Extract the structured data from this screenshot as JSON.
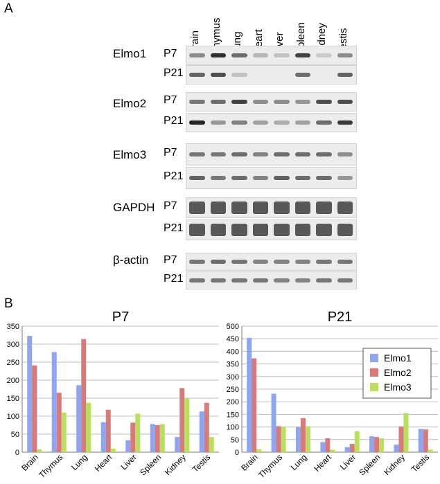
{
  "panelA": {
    "label": "A",
    "lanes": [
      "Brain",
      "Thymus",
      "Lung",
      "Heart",
      "Liver",
      "Spleen",
      "Kidney",
      "Testis"
    ],
    "genes": [
      {
        "name": "Elmo1",
        "rows": [
          {
            "age": "P7",
            "levels": [
              0.45,
              0.9,
              0.6,
              0.25,
              0.2,
              0.8,
              0.15,
              0.45
            ]
          },
          {
            "age": "P21",
            "levels": [
              0.65,
              0.75,
              0.2,
              0.0,
              0.0,
              0.6,
              0.0,
              0.65
            ]
          }
        ]
      },
      {
        "name": "Elmo2",
        "rows": [
          {
            "age": "P7",
            "levels": [
              0.55,
              0.6,
              0.8,
              0.45,
              0.45,
              0.4,
              0.75,
              0.75
            ]
          },
          {
            "age": "P21",
            "levels": [
              0.95,
              0.4,
              0.5,
              0.35,
              0.3,
              0.35,
              0.6,
              0.85
            ]
          }
        ]
      },
      {
        "name": "Elmo3",
        "rows": [
          {
            "age": "P7",
            "levels": [
              0.55,
              0.55,
              0.6,
              0.5,
              0.6,
              0.6,
              0.6,
              0.45
            ]
          },
          {
            "age": "P21",
            "levels": [
              0.65,
              0.55,
              0.6,
              0.5,
              0.65,
              0.6,
              0.6,
              0.4
            ]
          }
        ]
      },
      {
        "name": "GAPDH",
        "rows": [
          {
            "age": "P7",
            "levels": [
              0.7,
              0.7,
              0.7,
              0.7,
              0.7,
              0.7,
              0.7,
              0.7
            ]
          },
          {
            "age": "P21",
            "levels": [
              0.7,
              0.7,
              0.7,
              0.7,
              0.7,
              0.7,
              0.7,
              0.7
            ]
          }
        ]
      },
      {
        "name": "β-actin",
        "rows": [
          {
            "age": "P7",
            "levels": [
              0.55,
              0.6,
              0.55,
              0.5,
              0.5,
              0.5,
              0.55,
              0.55
            ]
          },
          {
            "age": "P21",
            "levels": [
              0.55,
              0.55,
              0.55,
              0.55,
              0.5,
              0.5,
              0.55,
              0.55
            ]
          }
        ]
      }
    ]
  },
  "panelB": {
    "label": "B",
    "colors": {
      "Elmo1": "#8ea6f2",
      "Elmo2": "#d97a7a",
      "Elmo3": "#b7e05c"
    },
    "legend": [
      "Elmo1",
      "Elmo2",
      "Elmo3"
    ]
  },
  "chart_data": [
    {
      "type": "bar",
      "title": "P7",
      "categories": [
        "Brain",
        "Thymus",
        "Lung",
        "Heart",
        "Liver",
        "Spleen",
        "Kidney",
        "Testis"
      ],
      "ylim": [
        0,
        350
      ],
      "yticks": [
        0,
        50,
        100,
        150,
        200,
        250,
        300,
        350
      ],
      "series": [
        {
          "name": "Elmo1",
          "values": [
            323,
            278,
            186,
            83,
            33,
            78,
            42,
            113
          ]
        },
        {
          "name": "Elmo2",
          "values": [
            241,
            165,
            314,
            118,
            82,
            75,
            178,
            137
          ]
        },
        {
          "name": "Elmo3",
          "values": [
            8,
            110,
            137,
            10,
            107,
            78,
            150,
            42
          ]
        }
      ]
    },
    {
      "type": "bar",
      "title": "P21",
      "categories": [
        "Brain",
        "Thymus",
        "Lung",
        "Heart",
        "Liver",
        "Spleen",
        "Kidney",
        "Testis"
      ],
      "ylim": [
        0,
        500
      ],
      "yticks": [
        0,
        50,
        100,
        150,
        200,
        250,
        300,
        350,
        400,
        450,
        500
      ],
      "legend": "top-right",
      "series": [
        {
          "name": "Elmo1",
          "values": [
            454,
            232,
            100,
            40,
            20,
            63,
            30,
            92
          ]
        },
        {
          "name": "Elmo2",
          "values": [
            372,
            103,
            135,
            55,
            33,
            60,
            102,
            90
          ]
        },
        {
          "name": "Elmo3",
          "values": [
            12,
            100,
            103,
            10,
            83,
            55,
            155,
            10
          ]
        }
      ]
    }
  ]
}
